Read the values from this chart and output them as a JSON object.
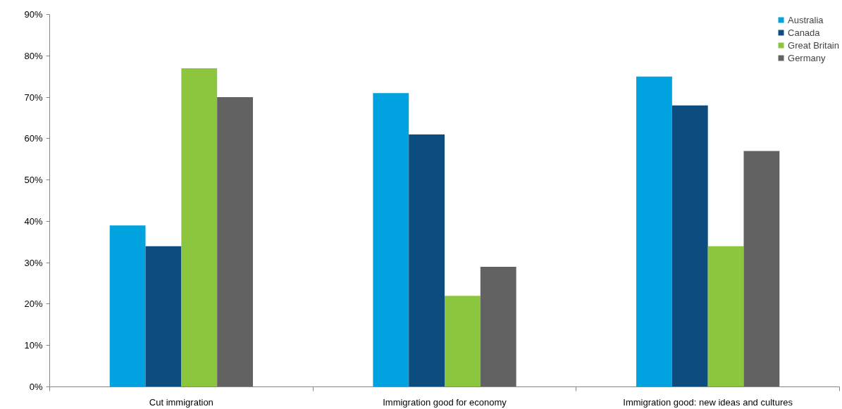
{
  "chart_data": {
    "type": "bar",
    "categories": [
      "Cut immigration",
      "Immigration good for economy",
      "Immigration good: new ideas and cultures"
    ],
    "series": [
      {
        "name": "Australia",
        "color": "#00a3e0",
        "values": [
          39,
          71,
          75
        ]
      },
      {
        "name": "Canada",
        "color": "#0d4c7e",
        "values": [
          34,
          61,
          68
        ]
      },
      {
        "name": "Great Britain",
        "color": "#8cc63f",
        "values": [
          77,
          22,
          34
        ]
      },
      {
        "name": "Germany",
        "color": "#626262",
        "values": [
          70,
          29,
          57
        ]
      }
    ],
    "ylim": [
      0,
      90
    ],
    "yticks": [
      {
        "value": 0,
        "label": "0%"
      },
      {
        "value": 10,
        "label": "10%"
      },
      {
        "value": 20,
        "label": "20%"
      },
      {
        "value": 30,
        "label": "30%"
      },
      {
        "value": 40,
        "label": "40%"
      },
      {
        "value": 50,
        "label": "50%"
      },
      {
        "value": 60,
        "label": "60%"
      },
      {
        "value": 70,
        "label": "70%"
      },
      {
        "value": 80,
        "label": "80%"
      },
      {
        "value": 90,
        "label": "90%"
      }
    ],
    "grid": false,
    "legend": "top right"
  }
}
